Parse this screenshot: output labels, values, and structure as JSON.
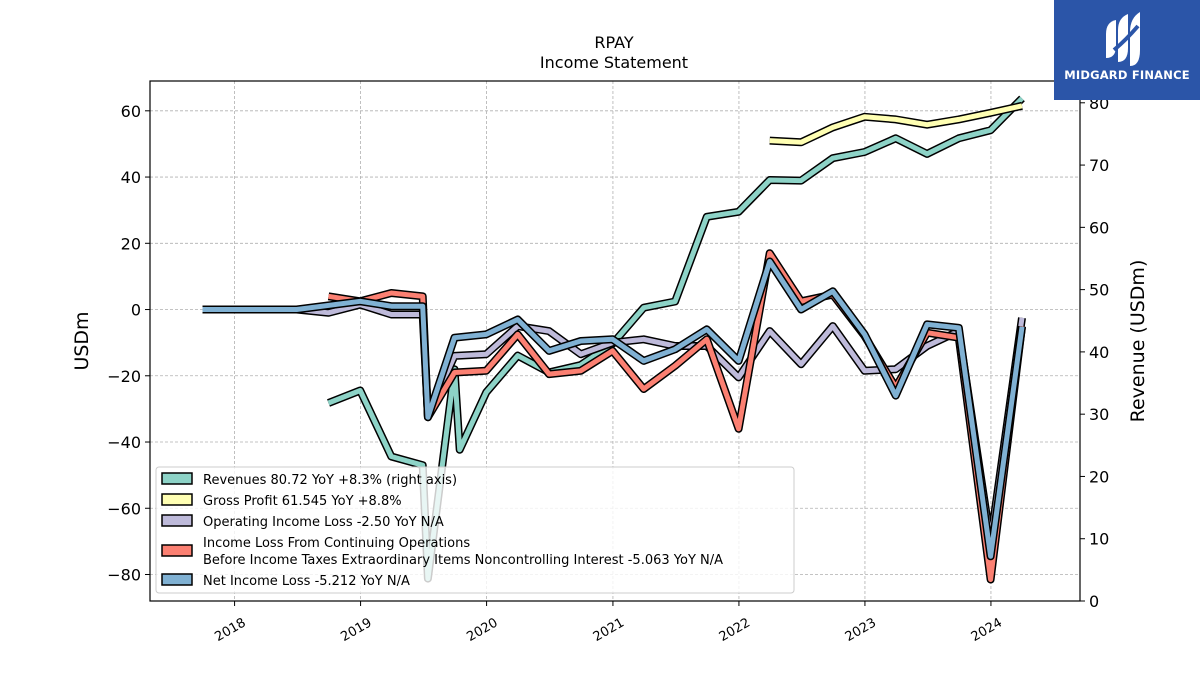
{
  "chart_data": {
    "type": "line",
    "title": "RPAY",
    "subtitle": "Income Statement",
    "ylabel": "USDm",
    "ylabel_right": "Revenue (USDm)",
    "ylim": [
      -88,
      69
    ],
    "ylim_right": [
      0,
      83.5
    ],
    "yticks": [
      "60",
      "40",
      "20",
      "0",
      "−20",
      "−40",
      "−60",
      "−80"
    ],
    "yticks_right": [
      "80",
      "70",
      "60",
      "50",
      "40",
      "30",
      "20",
      "10",
      "0"
    ],
    "xticks": [
      "2018",
      "2019",
      "2020",
      "2021",
      "2022",
      "2023",
      "2024"
    ],
    "grid": true,
    "legend_position": "lower-left",
    "series": [
      {
        "name": "Revenues  80.72 YoY +8.3% (right axis)",
        "color": "#8dd3c7",
        "axis": "right",
        "points": [
          [
            "2018-09-30",
            31.8
          ],
          [
            "2018-12-31",
            33.8
          ],
          [
            "2019-03-31",
            23.2
          ],
          [
            "2019-06-30",
            21.8
          ],
          [
            "2019-07-15",
            3.6
          ],
          [
            "2019-09-30",
            37.2
          ],
          [
            "2019-10-15",
            24.3
          ],
          [
            "2019-12-31",
            33.5
          ],
          [
            "2020-03-31",
            39.4
          ],
          [
            "2020-06-30",
            36.7
          ],
          [
            "2020-09-30",
            37.9
          ],
          [
            "2020-12-31",
            41.3
          ],
          [
            "2021-03-31",
            47.1
          ],
          [
            "2021-06-30",
            48.1
          ],
          [
            "2021-09-30",
            61.7
          ],
          [
            "2021-12-31",
            62.5
          ],
          [
            "2022-03-31",
            67.6
          ],
          [
            "2022-06-30",
            67.5
          ],
          [
            "2022-09-30",
            71.1
          ],
          [
            "2022-12-31",
            72.1
          ],
          [
            "2023-03-31",
            74.3
          ],
          [
            "2023-06-30",
            71.8
          ],
          [
            "2023-09-30",
            74.3
          ],
          [
            "2023-12-31",
            75.6
          ],
          [
            "2024-03-31",
            80.7
          ]
        ]
      },
      {
        "name": "Gross Profit  61.545 YoY +8.8%",
        "color": "#ffffb3",
        "axis": "left",
        "points": [
          [
            "2022-03-31",
            51.0
          ],
          [
            "2022-06-30",
            50.5
          ],
          [
            "2022-09-30",
            55.0
          ],
          [
            "2022-12-31",
            58.2
          ],
          [
            "2023-03-31",
            57.4
          ],
          [
            "2023-06-30",
            55.8
          ],
          [
            "2023-09-30",
            57.4
          ],
          [
            "2023-12-31",
            59.4
          ],
          [
            "2024-03-31",
            61.5
          ]
        ]
      },
      {
        "name": "Operating Income Loss  -2.50 YoY N/A",
        "color": "#bebada",
        "axis": "left",
        "points": [
          [
            "2017-09-30",
            0.0
          ],
          [
            "2018-06-30",
            0.0
          ],
          [
            "2018-09-30",
            -1.0
          ],
          [
            "2018-12-31",
            1.5
          ],
          [
            "2019-03-31",
            -1.5
          ],
          [
            "2019-06-30",
            -1.5
          ],
          [
            "2019-07-15",
            -32.0
          ],
          [
            "2019-09-30",
            -14.0
          ],
          [
            "2019-12-31",
            -13.5
          ],
          [
            "2020-03-31",
            -5.0
          ],
          [
            "2020-06-30",
            -6.5
          ],
          [
            "2020-09-30",
            -13.5
          ],
          [
            "2020-12-31",
            -10.0
          ],
          [
            "2021-03-31",
            -9.0
          ],
          [
            "2021-06-30",
            -11.0
          ],
          [
            "2021-09-30",
            -11.0
          ],
          [
            "2021-12-31",
            -20.5
          ],
          [
            "2022-03-31",
            -6.5
          ],
          [
            "2022-06-30",
            -16.5
          ],
          [
            "2022-09-30",
            -5.0
          ],
          [
            "2022-12-31",
            -18.5
          ],
          [
            "2023-03-31",
            -18.0
          ],
          [
            "2023-06-30",
            -11.0
          ],
          [
            "2023-09-30",
            -6.5
          ],
          [
            "2023-12-31",
            -70.0
          ],
          [
            "2024-03-31",
            -2.5
          ]
        ]
      },
      {
        "name": "Income Loss From Continuing Operations Before Income Taxes Extraordinary Items Noncontrolling Interest  -5.063 YoY N/A",
        "label_lines": [
          "Income Loss From Continuing Operations",
          "Before Income Taxes Extraordinary Items Noncontrolling Interest  -5.063 YoY N/A"
        ],
        "color": "#fb8072",
        "axis": "left",
        "points": [
          [
            "2018-09-30",
            4.0
          ],
          [
            "2018-12-31",
            2.5
          ],
          [
            "2019-03-31",
            5.0
          ],
          [
            "2019-06-30",
            4.0
          ],
          [
            "2019-07-15",
            -32.5
          ],
          [
            "2019-09-30",
            -19.0
          ],
          [
            "2019-12-31",
            -18.5
          ],
          [
            "2020-03-31",
            -7.5
          ],
          [
            "2020-06-30",
            -19.5
          ],
          [
            "2020-09-30",
            -18.5
          ],
          [
            "2020-12-31",
            -12.5
          ],
          [
            "2021-03-31",
            -24.0
          ],
          [
            "2021-06-30",
            -17.0
          ],
          [
            "2021-09-30",
            -9.0
          ],
          [
            "2021-12-31",
            -36.0
          ],
          [
            "2022-03-31",
            17.0
          ],
          [
            "2022-06-30",
            2.5
          ],
          [
            "2022-09-30",
            4.5
          ],
          [
            "2022-12-31",
            -8.0
          ],
          [
            "2023-03-31",
            -23.5
          ],
          [
            "2023-06-30",
            -7.0
          ],
          [
            "2023-09-30",
            -8.5
          ],
          [
            "2023-12-31",
            -81.5
          ],
          [
            "2024-03-31",
            -5.1
          ]
        ]
      },
      {
        "name": "Net Income Loss  -5.212 YoY N/A",
        "color": "#80b1d3",
        "axis": "left",
        "points": [
          [
            "2017-09-30",
            0.0
          ],
          [
            "2018-06-30",
            0.0
          ],
          [
            "2018-12-31",
            2.5
          ],
          [
            "2019-03-31",
            1.0
          ],
          [
            "2019-06-30",
            1.0
          ],
          [
            "2019-07-15",
            -32.5
          ],
          [
            "2019-09-30",
            -8.5
          ],
          [
            "2019-12-31",
            -7.5
          ],
          [
            "2020-03-31",
            -3.0
          ],
          [
            "2020-06-30",
            -12.5
          ],
          [
            "2020-09-30",
            -9.5
          ],
          [
            "2020-12-31",
            -9.0
          ],
          [
            "2021-03-31",
            -15.5
          ],
          [
            "2021-06-30",
            -12.0
          ],
          [
            "2021-09-30",
            -6.0
          ],
          [
            "2021-12-31",
            -15.5
          ],
          [
            "2022-03-31",
            14.5
          ],
          [
            "2022-06-30",
            0.0
          ],
          [
            "2022-09-30",
            5.5
          ],
          [
            "2022-12-31",
            -7.5
          ],
          [
            "2023-03-31",
            -26.0
          ],
          [
            "2023-06-30",
            -4.5
          ],
          [
            "2023-09-30",
            -5.5
          ],
          [
            "2023-12-31",
            -74.5
          ],
          [
            "2024-03-31",
            -5.2
          ]
        ]
      }
    ]
  },
  "logo": {
    "text": "MIDGARD FINANCE",
    "background": "#2b55a8"
  }
}
